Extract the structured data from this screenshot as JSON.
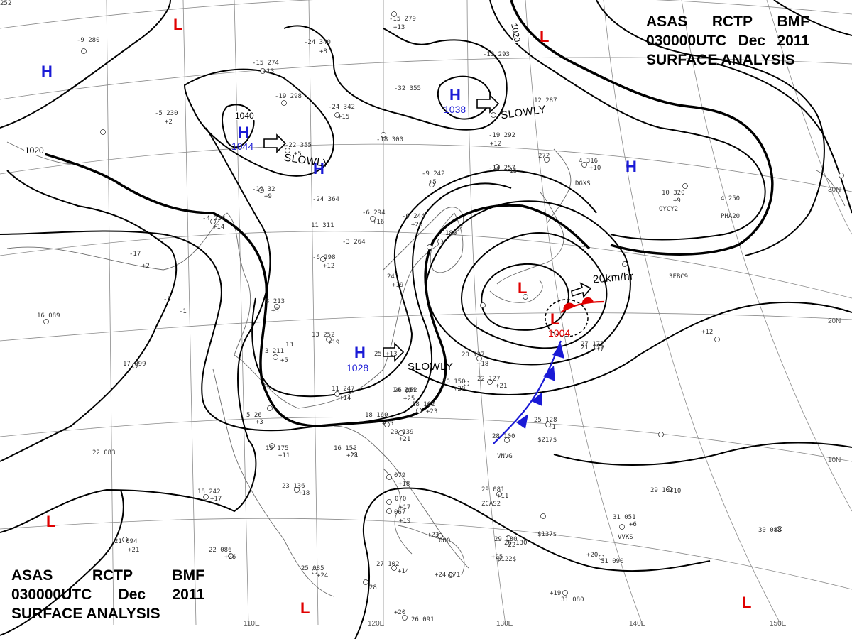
{
  "title": {
    "line1": [
      "ASAS",
      "RCTP",
      "BMF"
    ],
    "line2": [
      "030000UTC",
      "Dec",
      "2011"
    ],
    "line3": "SURFACE ANALYSIS"
  },
  "pressure_centers": [
    {
      "name": "high-center-northwest-1",
      "type": "H",
      "value": ""
    },
    {
      "name": "high-center-mongolia",
      "type": "H",
      "value": "1044"
    },
    {
      "name": "high-center-north-china",
      "type": "H",
      "value": ""
    },
    {
      "name": "high-center-north",
      "type": "H",
      "value": "1038"
    },
    {
      "name": "high-center-central-china",
      "type": "H",
      "value": "1028"
    },
    {
      "name": "high-center-east",
      "type": "H",
      "value": ""
    },
    {
      "name": "low-center-northwest",
      "type": "L",
      "value": ""
    },
    {
      "name": "low-center-northeast",
      "type": "L",
      "value": ""
    },
    {
      "name": "low-center-japan",
      "type": "L",
      "value": ""
    },
    {
      "name": "low-center-pacific",
      "type": "L",
      "value": "1004"
    },
    {
      "name": "low-center-southwest",
      "type": "L",
      "value": ""
    },
    {
      "name": "low-center-south",
      "type": "L",
      "value": ""
    },
    {
      "name": "low-center-southeast",
      "type": "L",
      "value": ""
    }
  ],
  "motion_labels": [
    {
      "name": "motion-label-mongolia-high",
      "text": "SLOWLY"
    },
    {
      "name": "motion-label-north-high",
      "text": "SLOWLY"
    },
    {
      "name": "motion-label-central-high",
      "text": "SLOWLY"
    },
    {
      "name": "motion-label-pacific-low",
      "text": "20km/hr"
    }
  ],
  "isobar_labels": [
    "1040",
    "1020",
    "1020"
  ],
  "longitude_labels": [
    "110E",
    "120E",
    "130E",
    "140E",
    "150E"
  ],
  "latitude_labels": [
    "30N",
    "20N",
    "10N"
  ],
  "station_plots": [
    "-15 279",
    "+13",
    "-9 280",
    "-15 274",
    "+13",
    "-24 340",
    "+8",
    "-5 230",
    "+2",
    "-19 298",
    "-24 342",
    "+15",
    "-32 355",
    "-13 293",
    "12 287",
    "-22 355",
    "+5",
    "-18 300",
    "-19 292",
    "+12",
    "-14 257",
    "-15",
    "-9 242",
    "+5",
    "-19 32",
    "+9",
    "-24 364",
    "-4 234",
    "+14",
    "-6 294",
    "+16",
    "-6 244",
    "+20",
    "11 311",
    "-3 264",
    "-6 298",
    "+12",
    "186",
    "272",
    "-17",
    "+2",
    "-8",
    "-1",
    "3 213",
    "+3",
    "13 252",
    "+19",
    "24",
    "+19",
    "10 320",
    "+9",
    "4 316",
    "+10",
    "4 250",
    "21 152",
    "+7",
    "20 137",
    "+18",
    "11 247",
    "+14",
    "20 150",
    "+20",
    "22 127",
    "+21",
    "14 204",
    "+25",
    "18 162",
    "+23",
    "17 099",
    "3 211",
    "+5",
    "13",
    "16 089",
    "5 26",
    "+3",
    "15 175",
    "+11",
    "16 155",
    "+24",
    "18 160",
    "+15",
    "20 139",
    "+21",
    "25 128",
    "+1",
    "28 100",
    "22 083",
    "23 136",
    "+18",
    "18 242",
    "+17",
    "079",
    "+18",
    "070",
    "+17",
    "067",
    "+19",
    "29 081",
    "+11",
    "29 130",
    "+22",
    "29 102",
    "+10",
    "31 051",
    "+6",
    "30 083",
    "+8",
    "22 086",
    "+26",
    "21 094",
    "+21",
    "25 085",
    "+24",
    "27 102",
    "+14",
    "28",
    "+20",
    "26 091",
    "+23",
    "080",
    "+24",
    "071",
    "+25",
    "26 130",
    "+20",
    "31 090",
    "+19",
    "31 080",
    "+12",
    "27 177",
    "26 152",
    "25 +13",
    "252"
  ],
  "station_codes": [
    "DGXS",
    "OYCY2",
    "PHA20",
    "3FBC9",
    "VNVG",
    "ZCAS2",
    "VVKS",
    "$137$",
    "$122$",
    "$217$"
  ],
  "colors": {
    "high": "#1a1ad6",
    "low": "#e00000",
    "cold_front": "#1a1ad6",
    "warm_front": "#e00000",
    "isobar": "#000000",
    "grid": "#8a8a8a",
    "coast": "#6a6a6a"
  }
}
